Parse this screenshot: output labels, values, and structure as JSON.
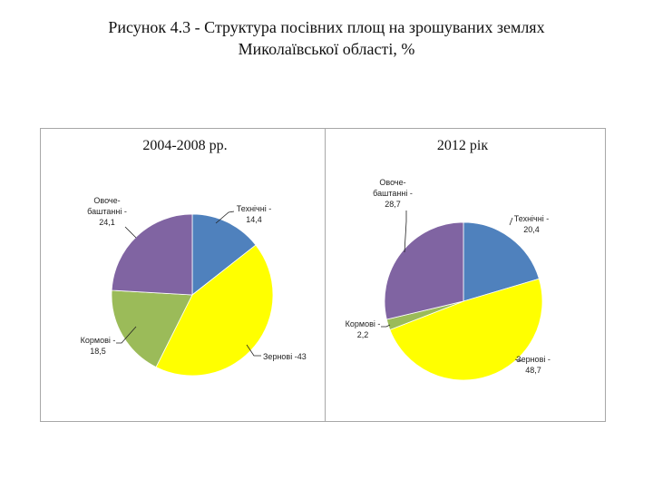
{
  "page": {
    "title_line1": "Рисунок 4.3 - Структура посівних площ на зрошуваних землях",
    "title_line2": "Миколаївської області, %"
  },
  "chart_data": [
    {
      "type": "pie",
      "title": "2004-2008 рр.",
      "slices": [
        {
          "name": "Технічні",
          "value": 14.4,
          "color": "#4F81BD",
          "label": [
            "Технічні -",
            "14,4"
          ]
        },
        {
          "name": "Зернові",
          "value": 43,
          "color": "#FFFF00",
          "label": [
            "Зернові -43"
          ]
        },
        {
          "name": "Кормові",
          "value": 18.5,
          "color": "#9BBB59",
          "label": [
            "Кормові -",
            "18,5"
          ]
        },
        {
          "name": "Овоче-баштанні",
          "value": 24.1,
          "color": "#8064A2",
          "label": [
            "Овоче-",
            "баштанні -",
            "24,1"
          ]
        }
      ]
    },
    {
      "type": "pie",
      "title": "2012 рік",
      "slices": [
        {
          "name": "Технічні",
          "value": 20.4,
          "color": "#4F81BD",
          "label": [
            "Технічні -",
            "20,4"
          ]
        },
        {
          "name": "Зернові",
          "value": 48.7,
          "color": "#FFFF00",
          "label": [
            "Зернові -",
            "48,7"
          ]
        },
        {
          "name": "Кормові",
          "value": 2.2,
          "color": "#9BBB59",
          "label": [
            "Кормові -",
            "2,2"
          ]
        },
        {
          "name": "Овоче-баштанні",
          "value": 28.7,
          "color": "#8064A2",
          "label": [
            "Овоче-",
            "баштанні -",
            "28,7"
          ]
        }
      ]
    }
  ]
}
